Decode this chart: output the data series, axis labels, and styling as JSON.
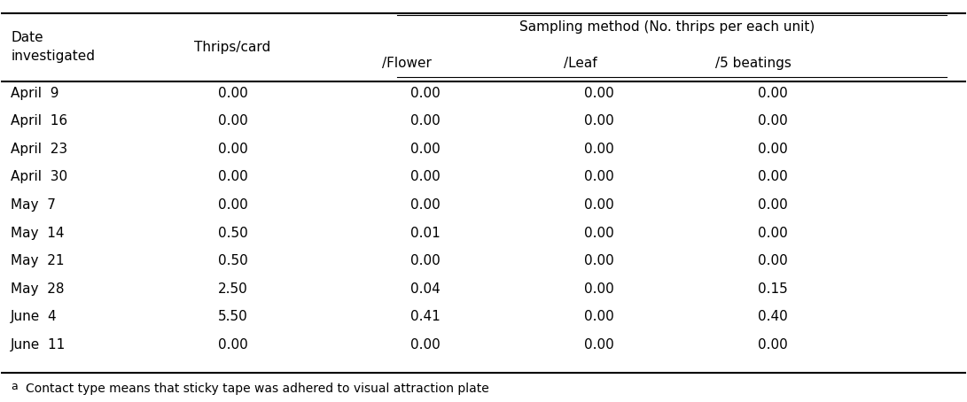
{
  "header_row1": [
    "Date\ninvestigated",
    "Thrips/card",
    "Sampling method (No. thrips per each unit)",
    "",
    ""
  ],
  "header_row2": [
    "",
    "",
    "/Flower",
    "/Leaf",
    "/5 beatings"
  ],
  "col_headers_top": "Sampling method (No. thrips per each unit)",
  "col_headers_sub": [
    "/Flower",
    "/Leaf",
    "/5 beatings"
  ],
  "col0_header": "Date\ninvestigated",
  "col1_header": "Thrips/card",
  "rows": [
    [
      "April  9",
      "0.00",
      "0.00",
      "0.00",
      "0.00"
    ],
    [
      "April  16",
      "0.00",
      "0.00",
      "0.00",
      "0.00"
    ],
    [
      "April  23",
      "0.00",
      "0.00",
      "0.00",
      "0.00"
    ],
    [
      "April  30",
      "0.00",
      "0.00",
      "0.00",
      "0.00"
    ],
    [
      "May  7",
      "0.00",
      "0.00",
      "0.00",
      "0.00"
    ],
    [
      "May  14",
      "0.50",
      "0.01",
      "0.00",
      "0.00"
    ],
    [
      "May  21",
      "0.50",
      "0.00",
      "0.00",
      "0.00"
    ],
    [
      "May  28",
      "2.50",
      "0.04",
      "0.00",
      "0.15"
    ],
    [
      "June  4",
      "5.50",
      "0.41",
      "0.00",
      "0.40"
    ],
    [
      "June  11",
      "0.00",
      "0.00",
      "0.00",
      "0.00"
    ]
  ],
  "footnote": "a Contact type means that sticky tape was adhered to visual attraction plate",
  "bg_color": "#ffffff",
  "text_color": "#000000",
  "font_size": 11,
  "footnote_font_size": 10
}
